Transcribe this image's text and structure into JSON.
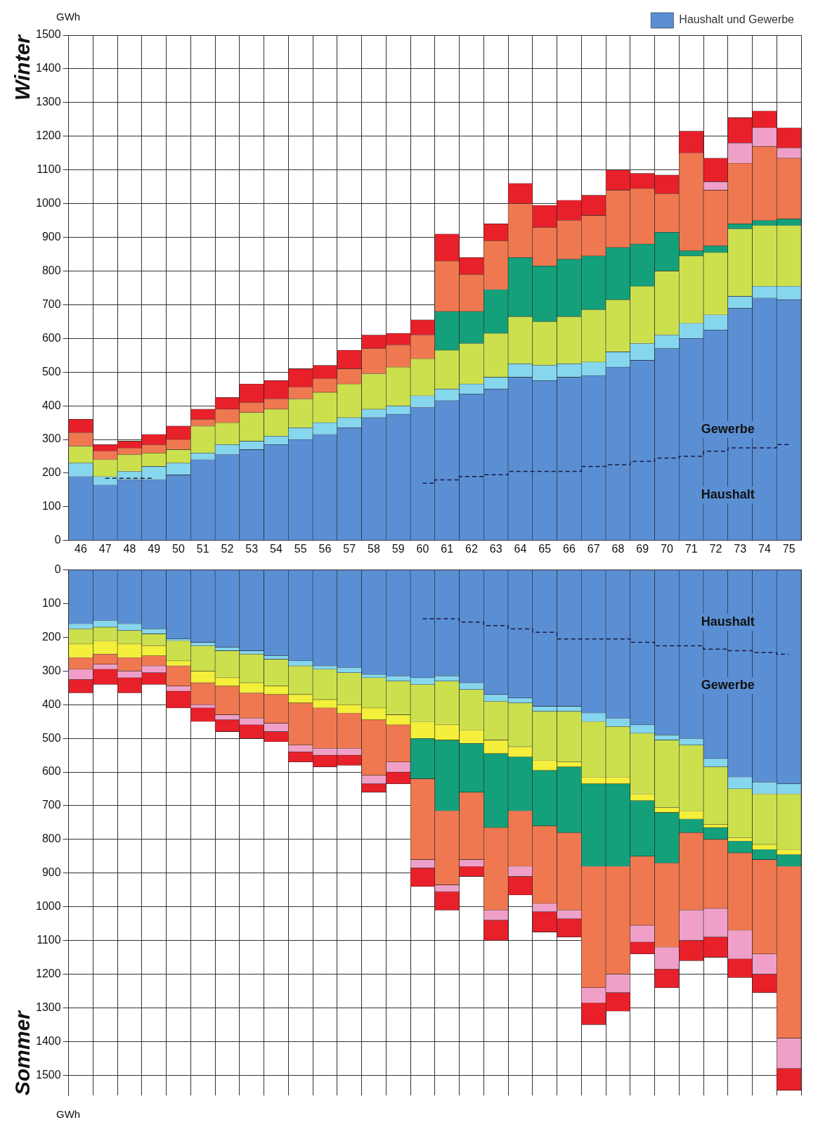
{
  "chart_data": [
    {
      "type": "bar",
      "title": "Winter",
      "ylabel": "GWh",
      "stacked": true,
      "grid": true,
      "legend": "top right",
      "categories": [
        "46",
        "47",
        "48",
        "49",
        "50",
        "51",
        "52",
        "53",
        "54",
        "55",
        "56",
        "57",
        "58",
        "59",
        "60",
        "61",
        "62",
        "63",
        "64",
        "65",
        "66",
        "67",
        "68",
        "69",
        "70",
        "71",
        "72",
        "73",
        "74",
        "75"
      ],
      "ylim": [
        0,
        1500
      ],
      "yticks": [
        0,
        100,
        200,
        300,
        400,
        500,
        600,
        700,
        800,
        900,
        1000,
        1100,
        1200,
        1300,
        1400,
        1500
      ],
      "series": [
        {
          "name": "Haushalt und Gewerbe",
          "color": "#5b8fd4",
          "values": [
            190,
            165,
            180,
            180,
            195,
            240,
            255,
            270,
            285,
            300,
            315,
            335,
            365,
            375,
            395,
            415,
            435,
            450,
            485,
            475,
            485,
            490,
            515,
            535,
            570,
            600,
            625,
            690,
            720,
            715
          ]
        },
        {
          "color": "#86d6ee",
          "values": [
            40,
            25,
            25,
            40,
            35,
            20,
            30,
            25,
            25,
            35,
            35,
            30,
            25,
            25,
            35,
            35,
            30,
            35,
            40,
            45,
            40,
            40,
            45,
            50,
            40,
            45,
            45,
            35,
            35,
            40
          ]
        },
        {
          "color": "#cce04e",
          "values": [
            50,
            50,
            50,
            40,
            40,
            80,
            65,
            85,
            80,
            85,
            90,
            100,
            105,
            115,
            110,
            115,
            120,
            130,
            140,
            130,
            140,
            155,
            155,
            170,
            190,
            200,
            185,
            200,
            180,
            180
          ]
        },
        {
          "color": "#14a07a",
          "values": [
            null,
            null,
            null,
            null,
            null,
            null,
            null,
            null,
            null,
            null,
            null,
            null,
            null,
            null,
            null,
            115,
            95,
            130,
            175,
            165,
            170,
            160,
            155,
            125,
            115,
            15,
            20,
            15,
            15,
            20
          ]
        },
        {
          "color": "#f07850",
          "values": [
            40,
            25,
            20,
            25,
            30,
            20,
            40,
            30,
            30,
            35,
            40,
            45,
            75,
            65,
            70,
            150,
            110,
            145,
            160,
            115,
            115,
            120,
            170,
            165,
            115,
            290,
            165,
            180,
            220,
            180
          ]
        },
        {
          "color": "#f0a0c8",
          "values": [
            null,
            null,
            null,
            null,
            null,
            null,
            null,
            null,
            null,
            null,
            null,
            null,
            null,
            null,
            null,
            null,
            null,
            null,
            null,
            null,
            null,
            null,
            null,
            null,
            null,
            null,
            25,
            60,
            55,
            30
          ]
        },
        {
          "color": "#e8202a",
          "values": [
            40,
            20,
            20,
            30,
            40,
            30,
            35,
            55,
            55,
            55,
            40,
            55,
            40,
            35,
            45,
            80,
            50,
            50,
            60,
            65,
            60,
            60,
            60,
            45,
            55,
            65,
            70,
            75,
            50,
            60
          ]
        },
        {
          "type": "step",
          "color": "#1a1a40",
          "line_style": "dashed",
          "marker": "none",
          "values": [
            null,
            185,
            185,
            185,
            null,
            null,
            null,
            null,
            null,
            null,
            null,
            null,
            null,
            null,
            170,
            180,
            190,
            195,
            205,
            205,
            205,
            220,
            225,
            235,
            245,
            250,
            265,
            275,
            275,
            285
          ]
        }
      ],
      "annotations": [
        "Gewerbe",
        "Haushalt"
      ]
    },
    {
      "type": "bar",
      "title": "Sommer",
      "ylabel": "GWh",
      "stacked": true,
      "grid": true,
      "tick_labels": "y",
      "categories": [
        "46",
        "47",
        "48",
        "49",
        "50",
        "51",
        "52",
        "53",
        "54",
        "55",
        "56",
        "57",
        "58",
        "59",
        "60",
        "61",
        "62",
        "63",
        "64",
        "65",
        "66",
        "67",
        "68",
        "69",
        "70",
        "71",
        "72",
        "73",
        "74",
        "75"
      ],
      "ylim": [
        1560,
        0
      ],
      "yticks": [
        0,
        100,
        200,
        300,
        400,
        500,
        600,
        700,
        800,
        900,
        1000,
        1100,
        1200,
        1300,
        1400,
        1500
      ],
      "series": [
        {
          "color": "#5b8fd4",
          "values": [
            160,
            150,
            160,
            175,
            205,
            215,
            230,
            240,
            255,
            270,
            285,
            290,
            310,
            315,
            320,
            315,
            335,
            370,
            380,
            405,
            405,
            425,
            440,
            460,
            490,
            500,
            560,
            615,
            630,
            635
          ]
        },
        {
          "color": "#86d6ee",
          "values": [
            15,
            20,
            20,
            15,
            5,
            10,
            10,
            10,
            10,
            15,
            10,
            15,
            10,
            15,
            20,
            15,
            20,
            20,
            15,
            15,
            15,
            25,
            25,
            25,
            15,
            20,
            25,
            35,
            35,
            30
          ]
        },
        {
          "color": "#cce04e",
          "values": [
            45,
            40,
            40,
            35,
            60,
            75,
            80,
            85,
            80,
            85,
            90,
            95,
            90,
            100,
            110,
            130,
            120,
            115,
            130,
            145,
            150,
            165,
            150,
            180,
            200,
            195,
            170,
            145,
            150,
            165
          ]
        },
        {
          "color": "#f3ef3a",
          "values": [
            40,
            40,
            40,
            30,
            15,
            35,
            25,
            30,
            25,
            25,
            25,
            25,
            35,
            30,
            50,
            45,
            40,
            40,
            30,
            30,
            15,
            20,
            20,
            20,
            15,
            25,
            10,
            10,
            15,
            15
          ]
        },
        {
          "color": "#14a07a",
          "values": [
            null,
            null,
            null,
            null,
            null,
            null,
            null,
            null,
            null,
            null,
            null,
            null,
            null,
            null,
            120,
            210,
            145,
            220,
            160,
            165,
            195,
            245,
            245,
            165,
            150,
            40,
            35,
            35,
            30,
            35
          ]
        },
        {
          "color": "#f07850",
          "values": [
            35,
            30,
            40,
            30,
            60,
            65,
            85,
            75,
            85,
            125,
            120,
            105,
            165,
            110,
            240,
            220,
            200,
            245,
            165,
            230,
            230,
            360,
            320,
            205,
            250,
            230,
            205,
            230,
            280,
            510
          ]
        },
        {
          "color": "#f0a0c8",
          "values": [
            30,
            15,
            20,
            20,
            15,
            10,
            15,
            20,
            25,
            20,
            20,
            20,
            25,
            30,
            25,
            20,
            20,
            30,
            30,
            25,
            25,
            45,
            55,
            50,
            65,
            90,
            85,
            85,
            60,
            90
          ]
        },
        {
          "color": "#e8202a",
          "values": [
            40,
            45,
            45,
            35,
            50,
            40,
            35,
            40,
            30,
            30,
            35,
            30,
            25,
            35,
            55,
            55,
            30,
            60,
            55,
            60,
            55,
            65,
            55,
            35,
            55,
            60,
            60,
            55,
            55,
            65
          ]
        },
        {
          "type": "step",
          "color": "#1a1a40",
          "line_style": "dashed",
          "marker": "none",
          "values": [
            null,
            null,
            null,
            null,
            null,
            null,
            null,
            null,
            null,
            null,
            null,
            null,
            null,
            null,
            145,
            145,
            155,
            165,
            175,
            185,
            205,
            205,
            205,
            215,
            225,
            225,
            235,
            240,
            245,
            250
          ]
        }
      ],
      "annotations": [
        "Haushalt",
        "Gewerbe"
      ]
    }
  ]
}
